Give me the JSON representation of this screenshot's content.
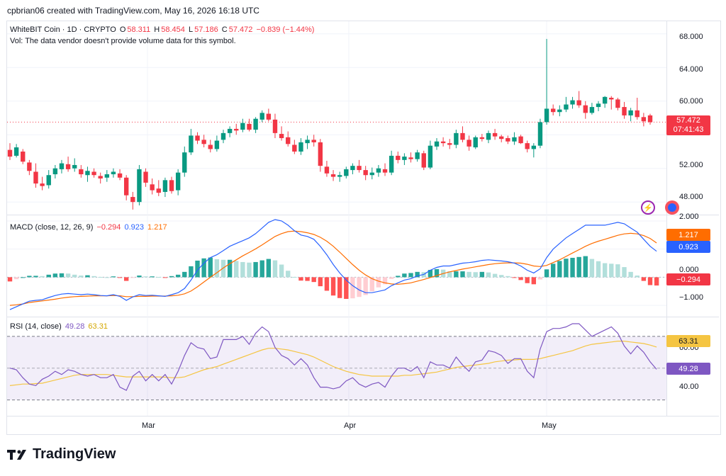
{
  "header": {
    "attribution": "cpbrian06 created with TradingView.com, May 16, 2026 16:18 UTC"
  },
  "main_legend": {
    "symbol": "WhiteBIT Coin · 1D · CRYPTO",
    "open_label": "O",
    "open": "58.311",
    "high_label": "H",
    "high": "58.454",
    "low_label": "L",
    "low": "57.186",
    "close_label": "C",
    "close": "57.472",
    "change": "−0.839 (−1.44%)",
    "vol_note": "Vol: The data vendor doesn't provide volume data for this symbol."
  },
  "macd_legend": {
    "title": "MACD (close, 12, 26, 9)",
    "hist": "−0.294",
    "macd": "0.923",
    "signal": "1.217"
  },
  "rsi_legend": {
    "title": "RSI (14, close)",
    "rsi": "49.28",
    "ma": "63.31"
  },
  "price_axis": {
    "ticks": [
      "68.000",
      "64.000",
      "60.000",
      "52.000",
      "48.000"
    ],
    "last_price": "57.472",
    "countdown": "07:41:43"
  },
  "macd_axis": {
    "ticks": [
      "2.000",
      "0.000",
      "−1.000"
    ],
    "signal_label": "1.217",
    "macd_label": "0.923",
    "hist_label": "−0.294"
  },
  "rsi_axis": {
    "ticks": [
      "60.00",
      "40.00"
    ],
    "ma_label": "63.31",
    "rsi_label": "49.28"
  },
  "time_axis": {
    "ticks": [
      "Mar",
      "Apr",
      "May"
    ]
  },
  "logo": {
    "text": "TradingView"
  },
  "colors": {
    "up": "#089981",
    "down": "#f23645",
    "macd": "#2962ff",
    "signal": "#ff6d00",
    "rsi": "#7e57c2",
    "rsi_ma": "#f5c542",
    "hist_up_strong": "#26a69a",
    "hist_up_weak": "#b2dfdb",
    "hist_down_strong": "#ff5252",
    "hist_down_weak": "#ffcdd2"
  },
  "chart_data": [
    {
      "type": "candlestick",
      "title": "WhiteBIT Coin · 1D · CRYPTO",
      "x_ticks": [
        "Mar",
        "Apr",
        "May"
      ],
      "ylim": [
        46.5,
        69.5
      ],
      "y_ticks": [
        48,
        52,
        60,
        64,
        68
      ],
      "candles": [
        [
          54.2,
          55.0,
          53.0,
          53.4
        ],
        [
          53.5,
          54.9,
          53.3,
          54.5
        ],
        [
          54.0,
          54.3,
          52.5,
          52.8
        ],
        [
          52.7,
          53.0,
          51.2,
          51.7
        ],
        [
          51.6,
          52.6,
          49.7,
          50.2
        ],
        [
          50.2,
          51.0,
          49.4,
          49.9
        ],
        [
          50.0,
          51.8,
          49.6,
          51.2
        ],
        [
          51.3,
          52.4,
          50.8,
          52.0
        ],
        [
          51.9,
          53.0,
          51.4,
          52.6
        ],
        [
          52.5,
          53.4,
          51.6,
          51.9
        ],
        [
          52.0,
          53.2,
          51.6,
          52.4
        ],
        [
          51.9,
          52.4,
          50.9,
          51.3
        ],
        [
          51.2,
          52.2,
          50.4,
          51.7
        ],
        [
          51.6,
          52.0,
          50.9,
          51.2
        ],
        [
          51.1,
          51.5,
          50.2,
          50.8
        ],
        [
          50.9,
          51.8,
          50.4,
          51.3
        ],
        [
          51.3,
          52.0,
          50.9,
          51.6
        ],
        [
          51.4,
          51.9,
          50.6,
          50.9
        ],
        [
          50.9,
          51.2,
          48.2,
          48.8
        ],
        [
          48.6,
          49.2,
          47.1,
          48.0
        ],
        [
          48.0,
          52.4,
          47.6,
          51.9
        ],
        [
          51.6,
          52.0,
          49.8,
          50.3
        ],
        [
          50.1,
          50.8,
          48.9,
          49.4
        ],
        [
          49.6,
          50.6,
          48.7,
          49.1
        ],
        [
          49.2,
          50.9,
          48.6,
          50.6
        ],
        [
          50.6,
          51.0,
          49.0,
          49.3
        ],
        [
          49.4,
          51.9,
          48.8,
          51.5
        ],
        [
          51.5,
          54.6,
          51.0,
          53.9
        ],
        [
          53.9,
          56.7,
          53.6,
          55.9
        ],
        [
          55.9,
          56.3,
          54.9,
          55.3
        ],
        [
          55.4,
          56.0,
          54.5,
          54.9
        ],
        [
          54.8,
          55.4,
          53.9,
          54.3
        ],
        [
          54.3,
          55.9,
          54.0,
          55.3
        ],
        [
          55.4,
          56.6,
          55.0,
          56.2
        ],
        [
          56.2,
          57.0,
          55.7,
          56.7
        ],
        [
          56.7,
          57.3,
          56.0,
          56.5
        ],
        [
          56.6,
          57.9,
          56.3,
          57.4
        ],
        [
          57.3,
          57.9,
          56.4,
          56.6
        ],
        [
          56.6,
          58.1,
          56.2,
          57.9
        ],
        [
          57.8,
          58.9,
          57.5,
          58.6
        ],
        [
          58.5,
          59.1,
          57.6,
          57.8
        ],
        [
          57.8,
          58.5,
          55.6,
          56.2
        ],
        [
          56.1,
          57.0,
          55.3,
          55.6
        ],
        [
          55.7,
          56.4,
          54.6,
          54.9
        ],
        [
          54.8,
          55.4,
          53.7,
          54.0
        ],
        [
          54.0,
          55.6,
          53.6,
          55.1
        ],
        [
          55.0,
          55.9,
          54.3,
          55.4
        ],
        [
          55.4,
          56.0,
          54.6,
          55.1
        ],
        [
          55.1,
          55.5,
          51.6,
          52.3
        ],
        [
          52.2,
          52.9,
          51.0,
          51.4
        ],
        [
          51.3,
          51.8,
          50.5,
          51.0
        ],
        [
          51.0,
          51.6,
          50.4,
          51.2
        ],
        [
          51.1,
          52.2,
          50.8,
          51.9
        ],
        [
          51.8,
          52.6,
          51.3,
          52.3
        ],
        [
          52.3,
          53.0,
          51.5,
          51.8
        ],
        [
          51.8,
          52.3,
          50.6,
          51.2
        ],
        [
          51.2,
          52.1,
          50.7,
          51.5
        ],
        [
          51.5,
          52.4,
          51.0,
          52.0
        ],
        [
          51.9,
          52.6,
          51.1,
          51.5
        ],
        [
          51.5,
          54.1,
          51.2,
          53.5
        ],
        [
          53.5,
          54.0,
          52.6,
          53.0
        ],
        [
          53.0,
          53.8,
          52.4,
          53.4
        ],
        [
          53.3,
          53.9,
          52.7,
          53.1
        ],
        [
          53.1,
          54.2,
          52.8,
          53.9
        ],
        [
          53.8,
          54.1,
          51.8,
          52.1
        ],
        [
          52.1,
          55.3,
          51.9,
          54.7
        ],
        [
          54.6,
          55.6,
          54.2,
          55.2
        ],
        [
          55.2,
          55.7,
          54.6,
          55.0
        ],
        [
          55.0,
          55.5,
          54.3,
          54.8
        ],
        [
          54.8,
          56.6,
          54.4,
          56.2
        ],
        [
          56.2,
          57.0,
          55.1,
          55.4
        ],
        [
          55.4,
          55.9,
          54.1,
          54.6
        ],
        [
          54.5,
          55.9,
          54.3,
          55.7
        ],
        [
          55.7,
          56.1,
          55.2,
          55.5
        ],
        [
          55.4,
          56.5,
          55.0,
          56.2
        ],
        [
          56.2,
          56.7,
          55.4,
          55.8
        ],
        [
          55.8,
          56.0,
          55.1,
          55.5
        ],
        [
          55.6,
          55.9,
          54.9,
          55.2
        ],
        [
          55.2,
          56.3,
          54.8,
          55.7
        ],
        [
          55.8,
          56.0,
          54.9,
          55.0
        ],
        [
          55.0,
          55.3,
          53.9,
          54.3
        ],
        [
          54.3,
          55.0,
          53.3,
          54.7
        ],
        [
          54.7,
          57.9,
          54.4,
          57.5
        ],
        [
          57.5,
          67.4,
          57.2,
          59.1
        ],
        [
          59.1,
          59.6,
          58.3,
          58.7
        ],
        [
          58.7,
          59.5,
          58.2,
          59.0
        ],
        [
          59.0,
          60.5,
          58.7,
          59.6
        ],
        [
          59.6,
          60.5,
          59.1,
          60.1
        ],
        [
          60.1,
          61.2,
          59.2,
          59.5
        ],
        [
          59.5,
          60.0,
          57.9,
          58.6
        ],
        [
          58.6,
          59.8,
          58.4,
          59.3
        ],
        [
          59.3,
          60.0,
          58.8,
          59.7
        ],
        [
          59.7,
          60.6,
          59.2,
          60.5
        ],
        [
          60.4,
          60.6,
          59.0,
          60.2
        ],
        [
          60.2,
          60.4,
          58.9,
          59.2
        ],
        [
          59.3,
          59.9,
          57.9,
          58.3
        ],
        [
          58.3,
          59.2,
          57.6,
          58.9
        ],
        [
          58.9,
          60.4,
          57.8,
          58.1
        ],
        [
          58.1,
          58.6,
          57.0,
          57.6
        ],
        [
          58.3,
          58.5,
          57.2,
          57.5
        ]
      ]
    },
    {
      "type": "macd",
      "title": "MACD (close, 12, 26, 9)",
      "ylim": [
        -1.4,
        2.2
      ],
      "y_ticks": [
        2,
        0,
        -1
      ],
      "macd": [
        -1.15,
        -1.05,
        -0.95,
        -0.85,
        -0.82,
        -0.8,
        -0.72,
        -0.65,
        -0.6,
        -0.58,
        -0.6,
        -0.62,
        -0.6,
        -0.62,
        -0.65,
        -0.66,
        -0.62,
        -0.68,
        -0.82,
        -0.7,
        -0.62,
        -0.65,
        -0.64,
        -0.66,
        -0.68,
        -0.62,
        -0.55,
        -0.4,
        -0.1,
        0.25,
        0.5,
        0.7,
        0.8,
        0.95,
        1.1,
        1.2,
        1.3,
        1.4,
        1.55,
        1.75,
        1.95,
        2.05,
        2.0,
        1.85,
        1.65,
        1.5,
        1.45,
        1.35,
        1.1,
        0.8,
        0.45,
        0.15,
        -0.1,
        -0.3,
        -0.45,
        -0.55,
        -0.55,
        -0.5,
        -0.45,
        -0.3,
        -0.2,
        -0.1,
        -0.05,
        0.05,
        0.1,
        0.25,
        0.35,
        0.4,
        0.4,
        0.45,
        0.5,
        0.52,
        0.55,
        0.6,
        0.62,
        0.6,
        0.58,
        0.55,
        0.5,
        0.4,
        0.25,
        0.15,
        0.3,
        0.7,
        1.0,
        1.2,
        1.4,
        1.55,
        1.7,
        1.85,
        1.85,
        1.85,
        1.85,
        1.9,
        1.95,
        1.9,
        1.75,
        1.6,
        1.35,
        1.1,
        0.923
      ],
      "signal": [
        -1.0,
        -0.98,
        -0.95,
        -0.9,
        -0.87,
        -0.84,
        -0.81,
        -0.78,
        -0.74,
        -0.71,
        -0.69,
        -0.68,
        -0.67,
        -0.66,
        -0.66,
        -0.66,
        -0.65,
        -0.66,
        -0.69,
        -0.69,
        -0.68,
        -0.68,
        -0.67,
        -0.67,
        -0.67,
        -0.66,
        -0.64,
        -0.59,
        -0.49,
        -0.34,
        -0.17,
        0.0,
        0.16,
        0.33,
        0.48,
        0.62,
        0.76,
        0.88,
        1.01,
        1.15,
        1.3,
        1.45,
        1.55,
        1.62,
        1.64,
        1.62,
        1.58,
        1.52,
        1.42,
        1.28,
        1.1,
        0.89,
        0.67,
        0.45,
        0.25,
        0.08,
        -0.05,
        -0.14,
        -0.2,
        -0.24,
        -0.25,
        -0.23,
        -0.2,
        -0.14,
        -0.08,
        -0.01,
        0.06,
        0.13,
        0.19,
        0.24,
        0.29,
        0.33,
        0.37,
        0.41,
        0.45,
        0.48,
        0.5,
        0.51,
        0.51,
        0.5,
        0.46,
        0.4,
        0.38,
        0.42,
        0.52,
        0.62,
        0.74,
        0.86,
        0.98,
        1.1,
        1.2,
        1.28,
        1.35,
        1.42,
        1.49,
        1.54,
        1.56,
        1.54,
        1.48,
        1.38,
        1.217
      ]
    },
    {
      "type": "line",
      "title": "RSI (14, close)",
      "ylim": [
        20,
        82
      ],
      "y_ticks": [
        60,
        40
      ],
      "bands": [
        70,
        30
      ],
      "series": [
        {
          "name": "RSI",
          "values": [
            50,
            49,
            44,
            40,
            39,
            43,
            45,
            48,
            46,
            49,
            48,
            46,
            45,
            46,
            44,
            44,
            46,
            38,
            36,
            45,
            48,
            42,
            46,
            42,
            46,
            40,
            48,
            58,
            66,
            63,
            62,
            56,
            57,
            68,
            68,
            68,
            70,
            65,
            72,
            76,
            73,
            63,
            58,
            56,
            52,
            56,
            52,
            44,
            38,
            38,
            37,
            38,
            42,
            44,
            40,
            38,
            40,
            41,
            38,
            45,
            50,
            50,
            48,
            51,
            44,
            54,
            52,
            52,
            50,
            57,
            52,
            48,
            54,
            55,
            61,
            60,
            58,
            53,
            56,
            56,
            48,
            44,
            62,
            73,
            75,
            75,
            76,
            78,
            78,
            74,
            70,
            72,
            74,
            76,
            72,
            64,
            59,
            64,
            60,
            54,
            49.28
          ]
        },
        {
          "name": "MA",
          "values": [
            39,
            39.5,
            40,
            40,
            40.3,
            40.5,
            41.5,
            42.5,
            43.5,
            44.5,
            45.5,
            46,
            46,
            46,
            46,
            46,
            45.5,
            45,
            44.5,
            44.5,
            44.5,
            44.5,
            44.5,
            44.5,
            44.3,
            44,
            44,
            44.5,
            46,
            47.5,
            49,
            50,
            51,
            52.5,
            54,
            55.5,
            57,
            58.5,
            60,
            61.5,
            62.5,
            62.5,
            62,
            61.5,
            60.5,
            59.5,
            58.5,
            57,
            55,
            53,
            51,
            49.5,
            48,
            47,
            46,
            45.5,
            45,
            45,
            45,
            45,
            45,
            45.5,
            45.5,
            46,
            46.5,
            47,
            47.5,
            48.5,
            49.5,
            50.5,
            51,
            51.5,
            52,
            52.5,
            53,
            54,
            54.5,
            55,
            55.2,
            55.5,
            55.5,
            55.5,
            56,
            57,
            58,
            59,
            60,
            61,
            62.5,
            64,
            65,
            65.5,
            66,
            66.5,
            67,
            67,
            66.5,
            66,
            65.5,
            64.5,
            63.31
          ]
        }
      ]
    }
  ]
}
